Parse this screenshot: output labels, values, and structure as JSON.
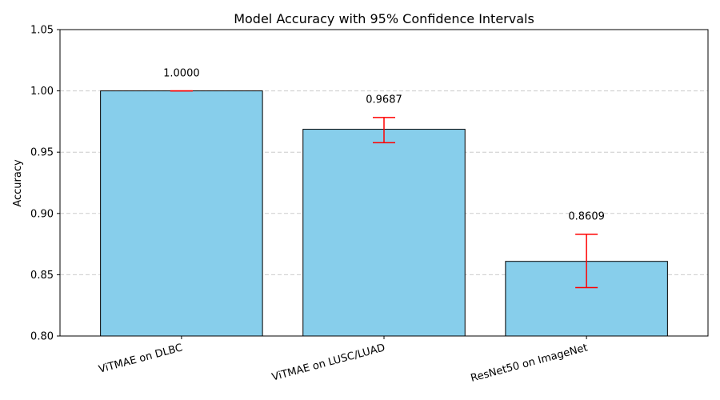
{
  "chart_data": {
    "type": "bar",
    "title": "Model Accuracy with 95% Confidence Intervals",
    "xlabel": "",
    "ylabel": "Accuracy",
    "ylim": [
      0.8,
      1.05
    ],
    "yticks": [
      0.8,
      0.85,
      0.9,
      0.95,
      1.0,
      1.05
    ],
    "ytick_labels": [
      "0.80",
      "0.85",
      "0.90",
      "0.95",
      "1.00",
      "1.05"
    ],
    "grid": "y-dashed",
    "categories": [
      "ViTMAE on DLBC",
      "ViTMAE on LUSC/LUAD",
      "ResNet50 on ImageNet"
    ],
    "values": [
      1.0,
      0.9687,
      0.8609
    ],
    "value_labels": [
      "1.0000",
      "0.9687",
      "0.8609"
    ],
    "ci_lower": [
      1.0,
      0.9577,
      0.8395
    ],
    "ci_upper": [
      1.0,
      0.9783,
      0.883
    ],
    "colors": {
      "bar": "#87ceeb",
      "bar_edge": "#000000",
      "error_bar": "#ff0000",
      "grid": "#cccccc"
    }
  }
}
